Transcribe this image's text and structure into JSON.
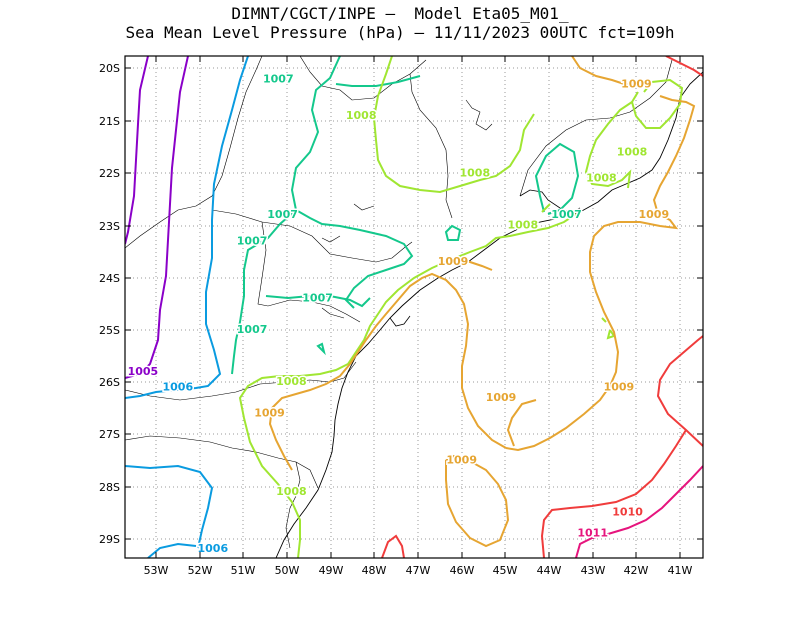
{
  "title": {
    "line1": "DIMNT/CGCT/INPE –  Model Eta05_M01_",
    "line2": "Sea Mean Level Pressure (hPa) – 11/11/2023 00UTC fct=109h"
  },
  "axes": {
    "lat_labels": [
      "20S",
      "21S",
      "22S",
      "23S",
      "24S",
      "25S",
      "26S",
      "27S",
      "28S",
      "29S"
    ],
    "lon_labels": [
      "53W",
      "52W",
      "51W",
      "50W",
      "49W",
      "48W",
      "47W",
      "46W",
      "45W",
      "44W",
      "43W",
      "42W",
      "41W"
    ]
  },
  "colors": {
    "1005": "#8a00c8",
    "1006": "#0a9be0",
    "1007": "#14c88c",
    "1008": "#a0e632",
    "1009": "#e6a532",
    "1010": "#f03c3c",
    "1011": "#e6147d"
  },
  "contour_labels": [
    {
      "text": "1007",
      "level": "1007",
      "lon": -50.2,
      "lat": -20.2
    },
    {
      "text": "1008",
      "level": "1008",
      "lon": -48.3,
      "lat": -20.9
    },
    {
      "text": "1008",
      "level": "1008",
      "lon": -45.7,
      "lat": -22.0
    },
    {
      "text": "1009",
      "level": "1009",
      "lon": -42.0,
      "lat": -20.3
    },
    {
      "text": "1008",
      "level": "1008",
      "lon": -42.1,
      "lat": -21.6
    },
    {
      "text": "1008",
      "level": "1008",
      "lon": -42.8,
      "lat": -22.1
    },
    {
      "text": "1009",
      "level": "1009",
      "lon": -41.6,
      "lat": -22.8
    },
    {
      "text": "1007",
      "level": "1007",
      "lon": -43.6,
      "lat": -22.8
    },
    {
      "text": "1008",
      "level": "1008",
      "lon": -44.6,
      "lat": -23.0
    },
    {
      "text": "1007",
      "level": "1007",
      "lon": -50.1,
      "lat": -22.8
    },
    {
      "text": "1007",
      "level": "1007",
      "lon": -50.8,
      "lat": -23.3
    },
    {
      "text": "1009",
      "level": "1009",
      "lon": -46.2,
      "lat": -23.7
    },
    {
      "text": "1007",
      "level": "1007",
      "lon": -49.3,
      "lat": -24.4
    },
    {
      "text": "1007",
      "level": "1007",
      "lon": -50.8,
      "lat": -25.0
    },
    {
      "text": "1005",
      "level": "1005",
      "lon": -53.3,
      "lat": -25.8
    },
    {
      "text": "1006",
      "level": "1006",
      "lon": -52.5,
      "lat": -26.1
    },
    {
      "text": "1008",
      "level": "1008",
      "lon": -49.9,
      "lat": -26.0
    },
    {
      "text": "1009",
      "level": "1009",
      "lon": -42.4,
      "lat": -26.1
    },
    {
      "text": "1009",
      "level": "1009",
      "lon": -50.4,
      "lat": -26.6
    },
    {
      "text": "1009",
      "level": "1009",
      "lon": -45.1,
      "lat": -26.3
    },
    {
      "text": "1009",
      "level": "1009",
      "lon": -46.0,
      "lat": -27.5
    },
    {
      "text": "1008",
      "level": "1008",
      "lon": -49.9,
      "lat": -28.1
    },
    {
      "text": "1010",
      "level": "1010",
      "lon": -42.2,
      "lat": -28.5
    },
    {
      "text": "1011",
      "level": "1011",
      "lon": -43.0,
      "lat": -28.9
    },
    {
      "text": "1006",
      "level": "1006",
      "lon": -51.7,
      "lat": -29.2
    }
  ]
}
